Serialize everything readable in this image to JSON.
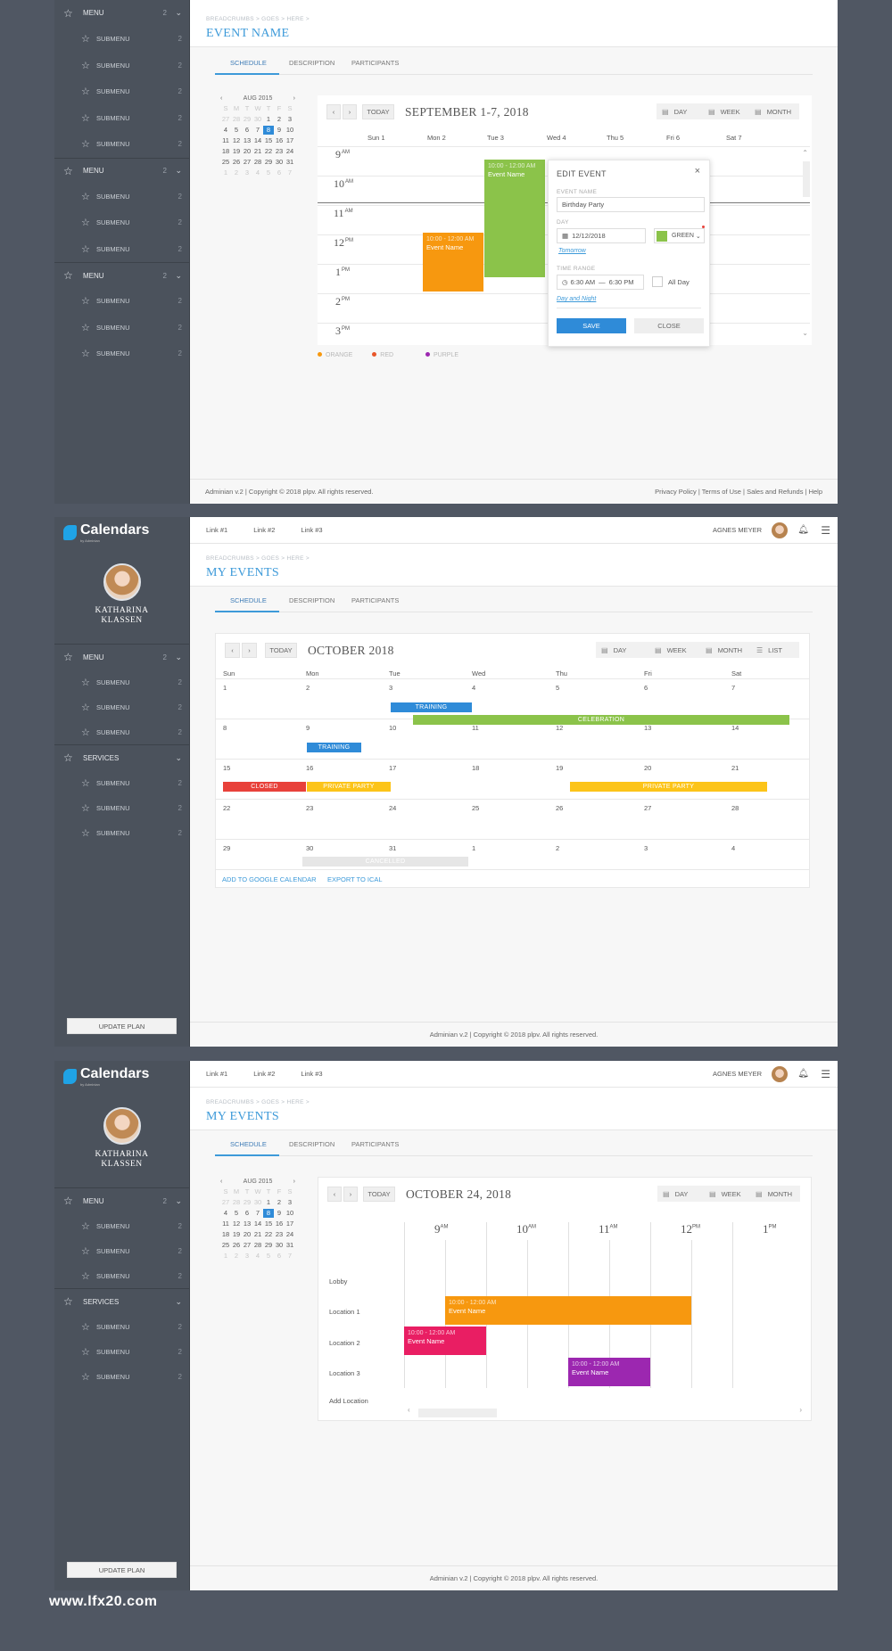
{
  "sidebar": {
    "menu_label": "MENU",
    "services_label": "SERVICES",
    "submenu_label": "SUBMENU",
    "count": "2",
    "upgrade_label": "UPDATE PLAN",
    "brand": "Calendars",
    "brand_sub": "by Adminian",
    "user_name_line1": "KATHARINA",
    "user_name_line2": "KLASSEN"
  },
  "topbar": {
    "links": [
      "Link #1",
      "Link #2",
      "Link #3"
    ],
    "user": "AGNES MEYER"
  },
  "breadcrumb": "BREADCRUMBS > GOES > HERE >",
  "tabs": [
    "SCHEDULE",
    "DESCRIPTION",
    "PARTICIPANTS"
  ],
  "views": {
    "day": "DAY",
    "week": "WEEK",
    "month": "MONTH",
    "list": "LIST"
  },
  "today": "TODAY",
  "mini_cal": {
    "month": "AUG 2015",
    "weekdays": [
      "S",
      "M",
      "T",
      "W",
      "T",
      "F",
      "S"
    ],
    "rows": [
      [
        "27",
        "28",
        "29",
        "30",
        "1",
        "2",
        "3"
      ],
      [
        "4",
        "5",
        "6",
        "7",
        "8",
        "9",
        "10"
      ],
      [
        "11",
        "12",
        "13",
        "14",
        "15",
        "16",
        "17"
      ],
      [
        "18",
        "19",
        "20",
        "21",
        "22",
        "23",
        "24"
      ],
      [
        "25",
        "26",
        "27",
        "28",
        "29",
        "30",
        "31"
      ],
      [
        "1",
        "2",
        "3",
        "4",
        "5",
        "6",
        "7"
      ]
    ],
    "selected": "8"
  },
  "screen1": {
    "title": "EVENT NAME",
    "range_title": "SEPTEMBER 1-7, 2018",
    "days": [
      "Sun 1",
      "Mon 2",
      "Tue 3",
      "Wed 4",
      "Thu 5",
      "Fri 6",
      "Sat 7"
    ],
    "hours": [
      {
        "h": "9",
        "ap": "AM"
      },
      {
        "h": "10",
        "ap": "AM"
      },
      {
        "h": "11",
        "ap": "AM"
      },
      {
        "h": "12",
        "ap": "PM"
      },
      {
        "h": "1",
        "ap": "PM"
      },
      {
        "h": "2",
        "ap": "PM"
      },
      {
        "h": "3",
        "ap": "PM"
      }
    ],
    "event_orange": {
      "time": "10:00 - 12:00 AM",
      "name": "Event Name"
    },
    "event_green": {
      "time": "10:00 - 12:00 AM",
      "name": "Event Name"
    },
    "legend": [
      "ORANGE",
      "RED",
      "PURPLE"
    ],
    "footer_left": "Adminian v.2 |  Copyright © 2018 plpv. All rights reserved.",
    "footer_right": "Privacy Policy | Terms of Use | Sales and Refunds | Help",
    "popup": {
      "title": "EDIT EVENT",
      "name_label": "EVENT NAME",
      "name_value": "Birthday Party",
      "day_label": "DAY",
      "day_value": "12/12/2018",
      "color_value": "GREEN",
      "tomorrow": "Tomorrow",
      "time_label": "TIME RANGE",
      "time_from": "6:30 AM",
      "time_dash": "—",
      "time_to": "6:30 PM",
      "all_day": "All Day",
      "day_night": "Day and Night",
      "save": "SAVE",
      "close": "CLOSE",
      "x": "×"
    }
  },
  "screen2": {
    "title": "MY EVENTS",
    "month_title": "OCTOBER 2018",
    "weekdays": [
      "Sun",
      "Mon",
      "Tue",
      "Wed",
      "Thu",
      "Fri",
      "Sat"
    ],
    "weeks": [
      [
        "1",
        "2",
        "3",
        "4",
        "5",
        "6",
        "7"
      ],
      [
        "8",
        "9",
        "10",
        "11",
        "12",
        "13",
        "14"
      ],
      [
        "15",
        "16",
        "17",
        "18",
        "19",
        "20",
        "21"
      ],
      [
        "22",
        "23",
        "24",
        "25",
        "26",
        "27",
        "28"
      ],
      [
        "29",
        "30",
        "31",
        "1",
        "2",
        "3",
        "4"
      ]
    ],
    "bars": {
      "training": "TRAINING",
      "celebration": "CELEBRATION",
      "closed": "CLOSED",
      "private": "PRIVATE PARTY",
      "cancelled": "CANCELLED"
    },
    "add_google": "ADD TO GOOGLE CALENDAR",
    "export": "EXPORT TO ICAL",
    "footer": "Adminian v.2 |  Copyright © 2018 plpv. All rights reserved."
  },
  "screen3": {
    "title": "MY EVENTS",
    "date_title": "OCTOBER 24, 2018",
    "hours": [
      {
        "h": "9",
        "ap": "AM"
      },
      {
        "h": "10",
        "ap": "AM"
      },
      {
        "h": "11",
        "ap": "AM"
      },
      {
        "h": "12",
        "ap": "PM"
      },
      {
        "h": "1",
        "ap": "PM"
      }
    ],
    "locations": [
      "Lobby",
      "Location 1",
      "Location 2",
      "Location 3"
    ],
    "add_location": "Add Location",
    "ev_orange": {
      "time": "10:00 - 12:00 AM",
      "name": "Event Name"
    },
    "ev_pink": {
      "time": "10:00 - 12:00 AM",
      "name": "Event Name"
    },
    "ev_purple": {
      "time": "10:00 - 12:00 AM",
      "name": "Event Name"
    },
    "footer": "Adminian v.2 |  Copyright © 2018 plpv. All rights reserved."
  },
  "colors": {
    "orange": "#f7980f",
    "green": "#8bc34a",
    "blue": "#2f8bd8",
    "red": "#e8413a",
    "yellow": "#fcc419",
    "pink": "#e91e63",
    "purple": "#9c27b0"
  },
  "watermark": "www.lfx20.com"
}
